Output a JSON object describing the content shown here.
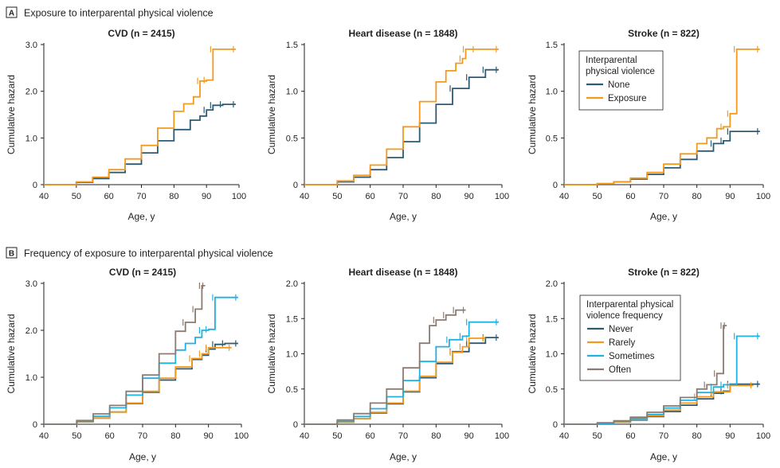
{
  "sections": [
    {
      "badge": "A",
      "title": "Exposure to interparental physical violence"
    },
    {
      "badge": "B",
      "title": "Frequency of exposure to interparental physical violence"
    }
  ],
  "colors": {
    "None": "#2e5a73",
    "Exposure": "#f39a1e",
    "Never": "#2e5a73",
    "Rarely": "#f39a1e",
    "Sometimes": "#1fb1e3",
    "Often": "#8c7b70"
  },
  "legends": [
    {
      "title_lines": [
        "Interparental",
        "physical violence"
      ],
      "entries": [
        "None",
        "Exposure"
      ]
    },
    {
      "title_lines": [
        "Interparental physical",
        "violence frequency"
      ],
      "entries": [
        "Never",
        "Rarely",
        "Sometimes",
        "Often"
      ]
    }
  ],
  "chart_data": [
    {
      "type": "line",
      "section": "A",
      "title": "CVD (n = 2415)",
      "xlabel": "Age, y",
      "ylabel": "Cumulative hazard",
      "xlim": [
        40,
        100
      ],
      "ylim": [
        0,
        3
      ],
      "xticks": [
        "40",
        "50",
        "60",
        "70",
        "80",
        "90",
        "100"
      ],
      "yticks": [
        "0",
        "1.0",
        "2.0",
        "3.0"
      ],
      "series": [
        {
          "name": "None",
          "x": [
            40,
            47,
            50,
            55,
            60,
            65,
            70,
            75,
            80,
            85,
            88,
            90,
            92,
            95,
            99
          ],
          "y": [
            0,
            0,
            0.05,
            0.13,
            0.26,
            0.44,
            0.68,
            0.94,
            1.18,
            1.38,
            1.47,
            1.6,
            1.7,
            1.72,
            1.72
          ]
        },
        {
          "name": "Exposure",
          "x": [
            40,
            47,
            50,
            55,
            60,
            65,
            70,
            75,
            80,
            83,
            86,
            88,
            90,
            92,
            99
          ],
          "y": [
            0,
            0,
            0.06,
            0.16,
            0.32,
            0.55,
            0.84,
            1.21,
            1.57,
            1.73,
            1.88,
            2.22,
            2.24,
            2.9,
            2.9
          ]
        }
      ]
    },
    {
      "type": "line",
      "section": "A",
      "title": "Heart disease (n = 1848)",
      "xlabel": "Age, y",
      "ylabel": "Cumulative hazard",
      "xlim": [
        40,
        100
      ],
      "ylim": [
        0,
        1.5
      ],
      "xticks": [
        "40",
        "50",
        "60",
        "70",
        "80",
        "90",
        "100"
      ],
      "yticks": [
        "0",
        "0.5",
        "1.0",
        "1.5"
      ],
      "series": [
        {
          "name": "None",
          "x": [
            40,
            47,
            50,
            55,
            60,
            65,
            70,
            75,
            80,
            85,
            90,
            95,
            99
          ],
          "y": [
            0,
            0,
            0.03,
            0.08,
            0.16,
            0.29,
            0.46,
            0.66,
            0.86,
            1.03,
            1.15,
            1.23,
            1.23
          ]
        },
        {
          "name": "Exposure",
          "x": [
            40,
            47,
            50,
            55,
            60,
            65,
            70,
            75,
            80,
            83,
            86,
            88,
            89,
            92,
            99
          ],
          "y": [
            0,
            0,
            0.04,
            0.1,
            0.21,
            0.38,
            0.62,
            0.89,
            1.1,
            1.22,
            1.3,
            1.35,
            1.45,
            1.45,
            1.45
          ]
        }
      ]
    },
    {
      "type": "line",
      "section": "A",
      "title": "Stroke (n = 822)",
      "xlabel": "Age, y",
      "ylabel": "Cumulative hazard",
      "xlim": [
        40,
        100
      ],
      "ylim": [
        0,
        1.5
      ],
      "xticks": [
        "40",
        "50",
        "60",
        "70",
        "80",
        "90",
        "100"
      ],
      "yticks": [
        "0",
        "0.5",
        "1.0",
        "1.5"
      ],
      "series": [
        {
          "name": "None",
          "x": [
            40,
            47,
            50,
            55,
            60,
            65,
            70,
            75,
            80,
            85,
            88,
            90,
            99
          ],
          "y": [
            0,
            0,
            0.01,
            0.03,
            0.06,
            0.11,
            0.18,
            0.27,
            0.36,
            0.44,
            0.47,
            0.57,
            0.57
          ]
        },
        {
          "name": "Exposure",
          "x": [
            40,
            47,
            50,
            55,
            60,
            65,
            70,
            75,
            80,
            83,
            86,
            88,
            90,
            92,
            99
          ],
          "y": [
            0,
            0,
            0.01,
            0.03,
            0.07,
            0.13,
            0.22,
            0.33,
            0.44,
            0.5,
            0.6,
            0.62,
            0.76,
            1.45,
            1.45
          ]
        }
      ]
    },
    {
      "type": "line",
      "section": "B",
      "title": "CVD (n = 2415)",
      "xlabel": "Age, y",
      "ylabel": "Cumulative hazard",
      "xlim": [
        40,
        100
      ],
      "ylim": [
        0,
        3
      ],
      "xticks": [
        "40",
        "50",
        "60",
        "70",
        "80",
        "90",
        "100"
      ],
      "yticks": [
        "0",
        "1.0",
        "2.0",
        "3.0"
      ],
      "series": [
        {
          "name": "Never",
          "x": [
            40,
            47,
            50,
            55,
            60,
            65,
            70,
            75,
            80,
            85,
            88,
            90,
            92,
            95,
            99
          ],
          "y": [
            0,
            0,
            0.05,
            0.13,
            0.26,
            0.44,
            0.68,
            0.94,
            1.18,
            1.38,
            1.47,
            1.6,
            1.7,
            1.72,
            1.72
          ]
        },
        {
          "name": "Rarely",
          "x": [
            40,
            47,
            50,
            55,
            60,
            65,
            70,
            75,
            80,
            85,
            88,
            90,
            97
          ],
          "y": [
            0,
            0,
            0.05,
            0.13,
            0.26,
            0.45,
            0.7,
            0.98,
            1.22,
            1.4,
            1.5,
            1.63,
            1.63
          ]
        },
        {
          "name": "Sometimes",
          "x": [
            40,
            47,
            50,
            55,
            60,
            65,
            70,
            75,
            80,
            83,
            86,
            88,
            90,
            92,
            99
          ],
          "y": [
            0,
            0,
            0.06,
            0.17,
            0.35,
            0.62,
            0.98,
            1.3,
            1.58,
            1.72,
            1.85,
            2.0,
            2.02,
            2.7,
            2.7
          ]
        },
        {
          "name": "Often",
          "x": [
            40,
            47,
            50,
            55,
            60,
            65,
            70,
            75,
            80,
            83,
            86,
            88,
            89
          ],
          "y": [
            0,
            0,
            0.08,
            0.22,
            0.4,
            0.7,
            1.05,
            1.5,
            1.98,
            2.17,
            2.45,
            2.95,
            2.95
          ]
        }
      ]
    },
    {
      "type": "line",
      "section": "B",
      "title": "Heart disease (n = 1848)",
      "xlabel": "Age, y",
      "ylabel": "Cumulative hazard",
      "xlim": [
        40,
        100
      ],
      "ylim": [
        0,
        2
      ],
      "xticks": [
        "40",
        "50",
        "60",
        "70",
        "80",
        "90",
        "100"
      ],
      "yticks": [
        "0",
        "0.5",
        "1.0",
        "1.5",
        "2.0"
      ],
      "series": [
        {
          "name": "Never",
          "x": [
            40,
            47,
            50,
            55,
            60,
            65,
            70,
            75,
            80,
            85,
            90,
            95,
            99
          ],
          "y": [
            0,
            0,
            0.03,
            0.08,
            0.16,
            0.29,
            0.46,
            0.66,
            0.86,
            1.03,
            1.15,
            1.23,
            1.23
          ]
        },
        {
          "name": "Rarely",
          "x": [
            40,
            47,
            50,
            55,
            60,
            65,
            70,
            75,
            80,
            85,
            88,
            90,
            95
          ],
          "y": [
            0,
            0,
            0.03,
            0.08,
            0.17,
            0.3,
            0.47,
            0.68,
            0.88,
            1.02,
            1.1,
            1.22,
            1.22
          ]
        },
        {
          "name": "Sometimes",
          "x": [
            40,
            47,
            50,
            55,
            60,
            65,
            70,
            75,
            80,
            84,
            88,
            90,
            99
          ],
          "y": [
            0,
            0,
            0.04,
            0.11,
            0.22,
            0.39,
            0.62,
            0.89,
            1.1,
            1.2,
            1.25,
            1.45,
            1.45
          ]
        },
        {
          "name": "Often",
          "x": [
            40,
            47,
            50,
            55,
            60,
            65,
            70,
            75,
            78,
            80,
            83,
            86,
            89
          ],
          "y": [
            0,
            0,
            0.06,
            0.15,
            0.3,
            0.5,
            0.8,
            1.15,
            1.4,
            1.48,
            1.55,
            1.62,
            1.62
          ]
        }
      ]
    },
    {
      "type": "line",
      "section": "B",
      "title": "Stroke (n = 822)",
      "xlabel": "Age, y",
      "ylabel": "Cumulative hazard",
      "xlim": [
        40,
        100
      ],
      "ylim": [
        0,
        2
      ],
      "xticks": [
        "40",
        "50",
        "60",
        "70",
        "80",
        "90",
        "100"
      ],
      "yticks": [
        "0",
        "0.5",
        "1.0",
        "1.5",
        "2.0"
      ],
      "series": [
        {
          "name": "Never",
          "x": [
            40,
            47,
            50,
            55,
            60,
            65,
            70,
            75,
            80,
            85,
            88,
            90,
            99
          ],
          "y": [
            0,
            0,
            0.01,
            0.03,
            0.06,
            0.11,
            0.18,
            0.27,
            0.36,
            0.44,
            0.47,
            0.57,
            0.57
          ]
        },
        {
          "name": "Rarely",
          "x": [
            40,
            47,
            50,
            55,
            60,
            65,
            70,
            75,
            80,
            85,
            90,
            97
          ],
          "y": [
            0,
            0,
            0.01,
            0.03,
            0.07,
            0.12,
            0.2,
            0.3,
            0.39,
            0.46,
            0.55,
            0.55
          ]
        },
        {
          "name": "Sometimes",
          "x": [
            40,
            47,
            50,
            55,
            60,
            65,
            70,
            75,
            80,
            85,
            88,
            92,
            99
          ],
          "y": [
            0,
            0,
            0.01,
            0.04,
            0.08,
            0.14,
            0.23,
            0.34,
            0.45,
            0.53,
            0.56,
            1.25,
            1.25
          ]
        },
        {
          "name": "Often",
          "x": [
            40,
            47,
            50,
            55,
            60,
            65,
            70,
            75,
            80,
            83,
            86,
            88,
            89
          ],
          "y": [
            0,
            0,
            0.02,
            0.05,
            0.1,
            0.17,
            0.26,
            0.38,
            0.5,
            0.56,
            0.72,
            1.4,
            1.4
          ]
        }
      ]
    }
  ]
}
